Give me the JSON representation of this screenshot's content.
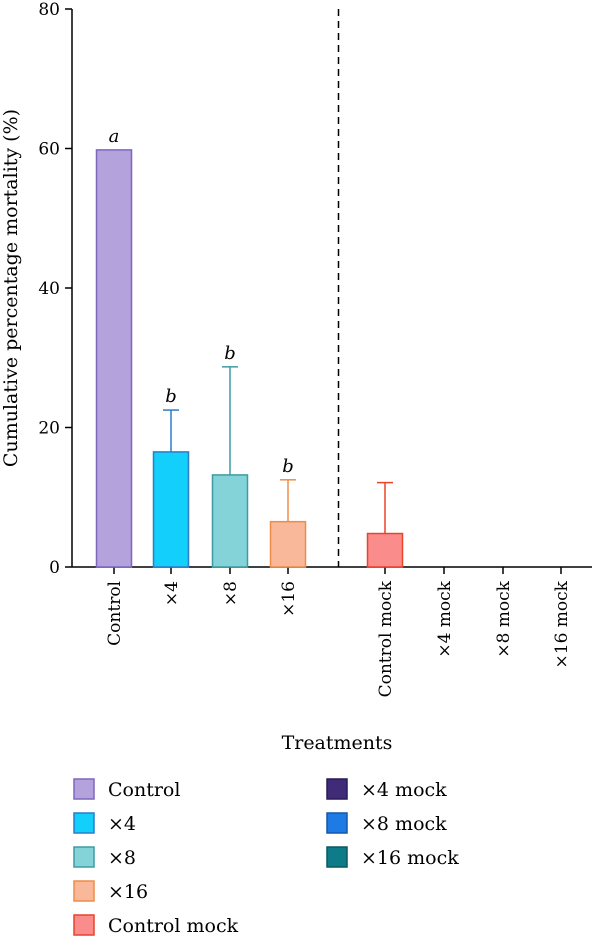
{
  "chart_data": {
    "type": "bar",
    "xlabel": "Treatments",
    "ylabel": "Cumulative percentage mortality (%)",
    "ylim": [
      0,
      80
    ],
    "yticks": [
      0,
      20,
      40,
      60,
      80
    ],
    "grid": false,
    "legend_placement": "bottom",
    "categories": [
      "Control",
      "×4",
      "×8",
      "×16",
      "Control mock",
      "×4 mock",
      "×8 mock",
      "×16 mock"
    ],
    "values": [
      59.8,
      16.5,
      13.2,
      6.5,
      4.8,
      0,
      0,
      0
    ],
    "error_upper": [
      null,
      22.5,
      28.7,
      12.5,
      12.1,
      null,
      null,
      null
    ],
    "significance": [
      "a",
      "b",
      "b",
      "b",
      "",
      "",
      "",
      ""
    ],
    "fill_colors": [
      "#B3A2DC",
      "#12CFFB",
      "#84D3D8",
      "#F9B89A",
      "#FA8C8C",
      "#3F2B77",
      "#1E7AE4",
      "#0E7C88"
    ],
    "edge_colors": [
      "#7E66BE",
      "#2C7CC8",
      "#3E9BA2",
      "#F08C48",
      "#E8432B",
      "#2A1A55",
      "#1459AA",
      "#085860"
    ],
    "legend": [
      {
        "label": "Control",
        "color": "#B3A2DC",
        "edge": "#7E66BE"
      },
      {
        "label": "×4",
        "color": "#12CFFB",
        "edge": "#2C7CC8"
      },
      {
        "label": "×8",
        "color": "#84D3D8",
        "edge": "#3E9BA2"
      },
      {
        "label": "×16",
        "color": "#F9B89A",
        "edge": "#F08C48"
      },
      {
        "label": "Control mock",
        "color": "#FA8C8C",
        "edge": "#E8432B"
      },
      {
        "label": "×4 mock",
        "color": "#3F2B77",
        "edge": "#2A1A55"
      },
      {
        "label": "×8 mock",
        "color": "#1E7AE4",
        "edge": "#1459AA"
      },
      {
        "label": "×16 mock",
        "color": "#0E7C88",
        "edge": "#085860"
      }
    ],
    "divider_after_index": 3
  }
}
